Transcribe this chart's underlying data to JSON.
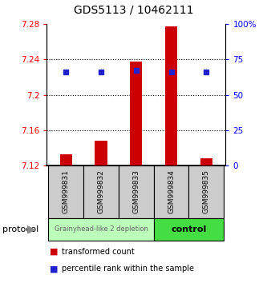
{
  "title": "GDS5113 / 10462111",
  "samples": [
    "GSM999831",
    "GSM999832",
    "GSM999833",
    "GSM999834",
    "GSM999835"
  ],
  "bar_bottom": 7.12,
  "bar_values": [
    7.133,
    7.148,
    7.238,
    7.277,
    7.128
  ],
  "percentile_values": [
    7.226,
    7.226,
    7.228,
    7.226,
    7.226
  ],
  "ylim_left": [
    7.12,
    7.28
  ],
  "ylim_right": [
    0,
    100
  ],
  "yticks_left": [
    7.12,
    7.16,
    7.2,
    7.24,
    7.28
  ],
  "yticks_right": [
    0,
    25,
    50,
    75,
    100
  ],
  "bar_color": "#cc0000",
  "percentile_color": "#2222cc",
  "group_bg_color": "#cccccc",
  "group_header_bg1": "#bbffbb",
  "group_header_bg2": "#44dd44",
  "protocol_label": "protocol",
  "group1_label": "Grainyhead-like 2 depletion",
  "group2_label": "control",
  "legend_bar_label": "transformed count",
  "legend_pct_label": "percentile rank within the sample",
  "title_fontsize": 10,
  "tick_fontsize": 7.5,
  "sample_fontsize": 6.5,
  "group_fontsize1": 6,
  "group_fontsize2": 8,
  "legend_fontsize": 7,
  "bar_width": 0.35
}
